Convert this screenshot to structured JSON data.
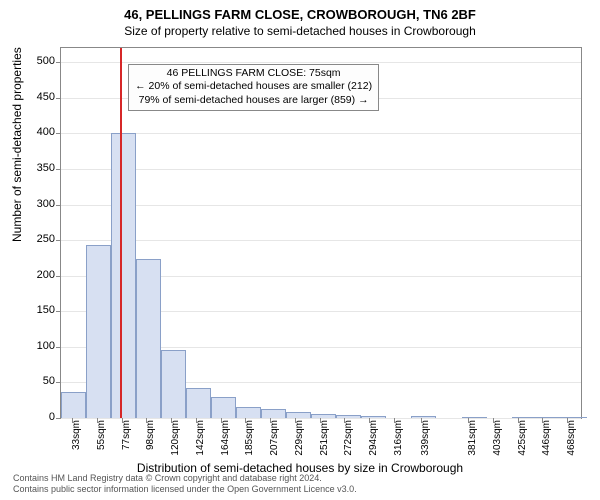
{
  "chart": {
    "type": "histogram",
    "title_line1": "46, PELLINGS FARM CLOSE, CROWBOROUGH, TN6 2BF",
    "title_line2": "Size of property relative to semi-detached houses in Crowborough",
    "ylabel": "Number of semi-detached properties",
    "xlabel": "Distribution of semi-detached houses by size in Crowborough",
    "background_color": "#ffffff",
    "plot_border_color": "#888888",
    "grid_color": "#e6e6e6",
    "bar_fill": "#d7e0f2",
    "bar_stroke": "#8aa0c8",
    "marker_color": "#d62728",
    "marker_x_value": 75,
    "title_fontsize": 13,
    "subtitle_fontsize": 12,
    "label_fontsize": 12,
    "tick_fontsize": 11,
    "xtick_fontsize": 10,
    "y": {
      "min": 0,
      "max": 520,
      "ticks": [
        0,
        50,
        100,
        150,
        200,
        250,
        300,
        350,
        400,
        450,
        500
      ]
    },
    "x": {
      "min": 23,
      "max": 480,
      "tick_values": [
        33,
        55,
        77,
        98,
        120,
        142,
        164,
        185,
        207,
        229,
        251,
        272,
        294,
        316,
        339,
        381,
        403,
        425,
        446,
        468
      ],
      "tick_labels": [
        "33sqm",
        "55sqm",
        "77sqm",
        "98sqm",
        "120sqm",
        "142sqm",
        "164sqm",
        "185sqm",
        "207sqm",
        "229sqm",
        "251sqm",
        "272sqm",
        "294sqm",
        "316sqm",
        "339sqm",
        "381sqm",
        "403sqm",
        "425sqm",
        "446sqm",
        "468sqm"
      ]
    },
    "bars": {
      "bin_start": 23,
      "bin_width": 22,
      "heights": [
        36,
        243,
        400,
        223,
        96,
        42,
        30,
        15,
        12,
        8,
        6,
        4,
        3,
        0,
        3,
        0,
        1,
        0,
        1,
        1,
        1
      ]
    },
    "annotation": {
      "line1": "46 PELLINGS FARM CLOSE: 75sqm",
      "line2": "← 20% of semi-detached houses are smaller (212)",
      "line3": "79% of semi-detached houses are larger (859) →",
      "left_value": 82,
      "top_value": 498,
      "box_bg": "#fdfdfd",
      "box_border": "#888888"
    }
  },
  "footer": {
    "line1": "Contains HM Land Registry data © Crown copyright and database right 2024.",
    "line2": "Contains public sector information licensed under the Open Government Licence v3.0."
  }
}
